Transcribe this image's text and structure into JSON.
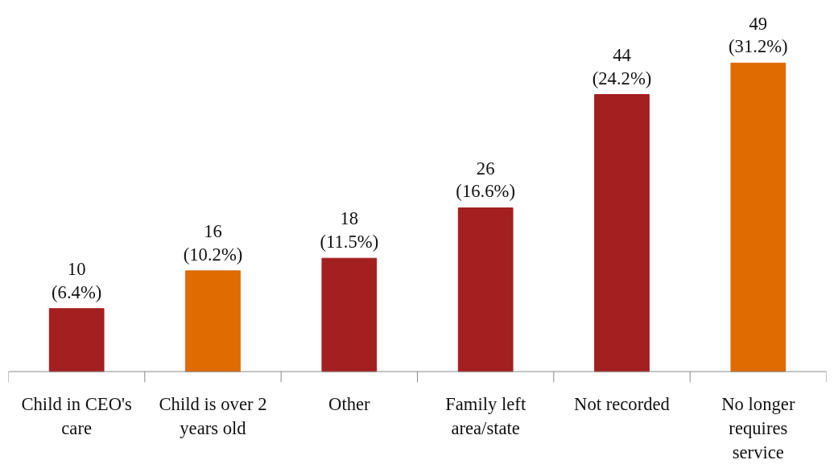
{
  "chart_data": {
    "type": "bar",
    "categories": [
      "Child in CEO's care",
      "Child is over 2 years old",
      "Other",
      "Family left area/state",
      "Not recorded",
      "No longer requires service"
    ],
    "values": [
      10,
      16,
      18,
      26,
      44,
      49
    ],
    "colors": [
      "#a31f20",
      "#e06b00",
      "#a31f20",
      "#a31f20",
      "#a31f20",
      "#e06b00"
    ],
    "value_labels": [
      "10\n(6.4%)",
      "16\n(10.2%)",
      "18\n(11.5%)",
      "26\n(16.6%)",
      "44\n(24.2%)",
      "49\n(31.2%)"
    ],
    "tick_labels": "x",
    "grid": false
  }
}
